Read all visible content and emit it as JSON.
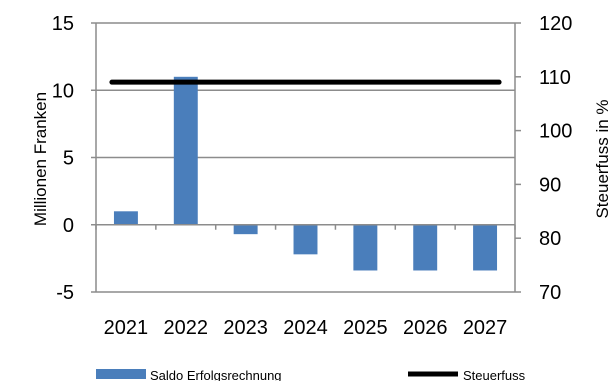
{
  "chart_data": {
    "type": "bar",
    "categories": [
      "2021",
      "2022",
      "2023",
      "2024",
      "2025",
      "2026",
      "2027"
    ],
    "series": [
      {
        "name": "Saldo Erfolgsrechnung",
        "type": "bar",
        "axis": "left",
        "color": "#4a7ebb",
        "values": [
          1.0,
          11.0,
          -0.7,
          -2.2,
          -3.4,
          -3.4,
          -3.4
        ]
      },
      {
        "name": "Steuerfuss",
        "type": "line",
        "axis": "right",
        "color": "#000000",
        "values": [
          109,
          109,
          109,
          109,
          109,
          109,
          109
        ]
      }
    ],
    "ylabel": "Millionen Franken",
    "ylim": [
      -5,
      15
    ],
    "yticks": [
      -5,
      0,
      5,
      10,
      15
    ],
    "ylabel_right": "Steuerfuss in %",
    "ylim_right": [
      70,
      120
    ],
    "yticks_right": [
      70,
      80,
      90,
      100,
      110,
      120
    ],
    "grid": true,
    "legend_position": "bottom"
  }
}
